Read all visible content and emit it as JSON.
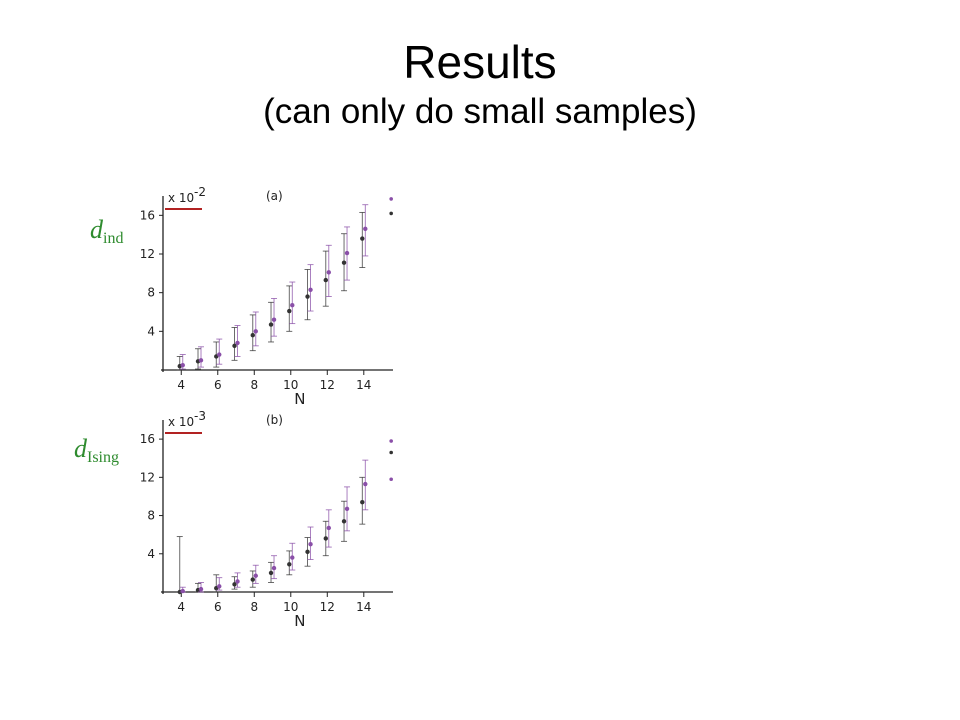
{
  "slide": {
    "title": "Results",
    "subtitle": "(can only do small samples)"
  },
  "colors": {
    "label_green": "#2e8b2e",
    "marker_underline": "#b22222",
    "series_dark": "#333333",
    "series_purple": "#8a4fa8"
  },
  "chart_data": [
    {
      "type": "scatter",
      "panel_label": "(a)",
      "multiplier": "x 10",
      "multiplier_exp": "-2",
      "ylabel": "d",
      "ylabel_sub": "ind",
      "xlabel": "N",
      "xticks": [
        4,
        6,
        8,
        10,
        12,
        14
      ],
      "yticks": [
        4,
        8,
        12,
        16
      ],
      "xlim": [
        3,
        15.6
      ],
      "ylim": [
        0,
        18
      ],
      "series": [
        {
          "x": [
            4,
            5,
            6,
            7,
            8,
            9,
            10,
            11,
            12,
            13,
            14
          ],
          "y": [
            0.4,
            0.9,
            1.4,
            2.5,
            3.6,
            4.7,
            6.1,
            7.6,
            9.3,
            11.1,
            13.6
          ],
          "low": [
            0.0,
            0.1,
            0.3,
            1.0,
            2.0,
            2.9,
            4.0,
            5.2,
            6.6,
            8.2,
            10.6
          ],
          "high": [
            1.4,
            2.2,
            2.9,
            4.4,
            5.7,
            7.0,
            8.7,
            10.4,
            12.3,
            14.1,
            16.3
          ]
        },
        {
          "x": [
            4,
            5,
            6,
            7,
            8,
            9,
            10,
            11,
            12,
            13,
            14
          ],
          "y": [
            0.5,
            1.0,
            1.6,
            2.8,
            4.0,
            5.2,
            6.7,
            8.3,
            10.1,
            12.1,
            14.6
          ],
          "low": [
            0.1,
            0.3,
            0.6,
            1.4,
            2.5,
            3.5,
            4.8,
            6.1,
            7.6,
            9.3,
            11.8
          ],
          "high": [
            1.6,
            2.4,
            3.2,
            4.6,
            6.0,
            7.4,
            9.1,
            10.9,
            12.9,
            14.8,
            17.1
          ]
        }
      ],
      "outliers": [
        {
          "x": 15.5,
          "y": 17.7
        },
        {
          "x": 15.5,
          "y": 16.2
        }
      ]
    },
    {
      "type": "scatter",
      "panel_label": "(b)",
      "multiplier": "x 10",
      "multiplier_exp": "-3",
      "ylabel": "d",
      "ylabel_sub": "Ising",
      "xlabel": "N",
      "xticks": [
        4,
        6,
        8,
        10,
        12,
        14
      ],
      "yticks": [
        4,
        8,
        12,
        16
      ],
      "xlim": [
        3,
        15.6
      ],
      "ylim": [
        0,
        18
      ],
      "series": [
        {
          "x": [
            4,
            5,
            6,
            7,
            8,
            9,
            10,
            11,
            12,
            13,
            14
          ],
          "y": [
            0.0,
            0.2,
            0.4,
            0.8,
            1.3,
            2.0,
            2.9,
            4.2,
            5.6,
            7.4,
            9.4
          ],
          "low": [
            0.0,
            0.0,
            0.0,
            0.3,
            0.5,
            1.0,
            1.8,
            2.7,
            3.8,
            5.3,
            7.1
          ],
          "high": [
            5.8,
            0.9,
            1.8,
            1.6,
            2.2,
            3.1,
            4.3,
            5.7,
            7.4,
            9.5,
            12.0
          ]
        },
        {
          "x": [
            4,
            5,
            6,
            7,
            8,
            9,
            10,
            11,
            12,
            13,
            14
          ],
          "y": [
            0.1,
            0.3,
            0.6,
            1.1,
            1.7,
            2.5,
            3.6,
            5.0,
            6.7,
            8.7,
            11.3
          ],
          "low": [
            0.0,
            0.0,
            0.2,
            0.5,
            0.9,
            1.4,
            2.3,
            3.4,
            4.7,
            6.4,
            8.6
          ],
          "high": [
            0.5,
            1.0,
            1.5,
            2.0,
            2.8,
            3.8,
            5.1,
            6.8,
            8.6,
            11.0,
            13.8
          ]
        }
      ],
      "outliers": [
        {
          "x": 15.5,
          "y": 15.8
        },
        {
          "x": 15.5,
          "y": 14.6
        },
        {
          "x": 15.5,
          "y": 11.8
        }
      ]
    }
  ]
}
